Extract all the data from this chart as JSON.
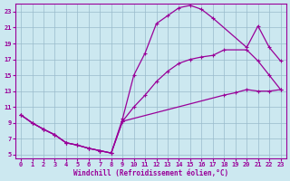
{
  "title": "",
  "xlabel": "Windchill (Refroidissement éolien,°C)",
  "ylabel": "",
  "bg_color": "#cce8f0",
  "line_color": "#990099",
  "grid_color": "#99bbcc",
  "xlim": [
    -0.5,
    23.5
  ],
  "ylim": [
    4.5,
    24
  ],
  "yticks": [
    5,
    7,
    9,
    11,
    13,
    15,
    17,
    19,
    21,
    23
  ],
  "xticks": [
    0,
    1,
    2,
    3,
    4,
    5,
    6,
    7,
    8,
    9,
    10,
    11,
    12,
    13,
    14,
    15,
    16,
    17,
    18,
    19,
    20,
    21,
    22,
    23
  ],
  "curve1_x": [
    0,
    1,
    2,
    3,
    4,
    5,
    6,
    7,
    8,
    9,
    10,
    11,
    12,
    13,
    14,
    15,
    16,
    17,
    20,
    21,
    22,
    23
  ],
  "curve1_y": [
    10,
    9,
    8.2,
    7.5,
    6.5,
    6.2,
    5.8,
    5.5,
    5.2,
    9.5,
    15.0,
    17.8,
    21.5,
    22.5,
    23.5,
    23.8,
    23.3,
    22.2,
    18.5,
    21.2,
    18.5,
    16.8
  ],
  "curve2_x": [
    0,
    1,
    2,
    3,
    4,
    5,
    6,
    7,
    8,
    9,
    10,
    11,
    12,
    13,
    14,
    15,
    16,
    17,
    18,
    20,
    21,
    22,
    23
  ],
  "curve2_y": [
    10,
    9,
    8.2,
    7.5,
    6.5,
    6.2,
    5.8,
    5.5,
    5.2,
    9.2,
    11.0,
    12.5,
    14.2,
    15.5,
    16.5,
    17.0,
    17.3,
    17.5,
    18.2,
    18.2,
    16.8,
    15.0,
    13.2
  ],
  "curve3_x": [
    0,
    1,
    2,
    3,
    4,
    5,
    6,
    7,
    8,
    9,
    18,
    19,
    20,
    21,
    22,
    23
  ],
  "curve3_y": [
    10,
    9,
    8.2,
    7.5,
    6.5,
    6.2,
    5.8,
    5.5,
    5.2,
    9.2,
    12.5,
    12.8,
    13.2,
    13.0,
    13.0,
    13.2
  ]
}
